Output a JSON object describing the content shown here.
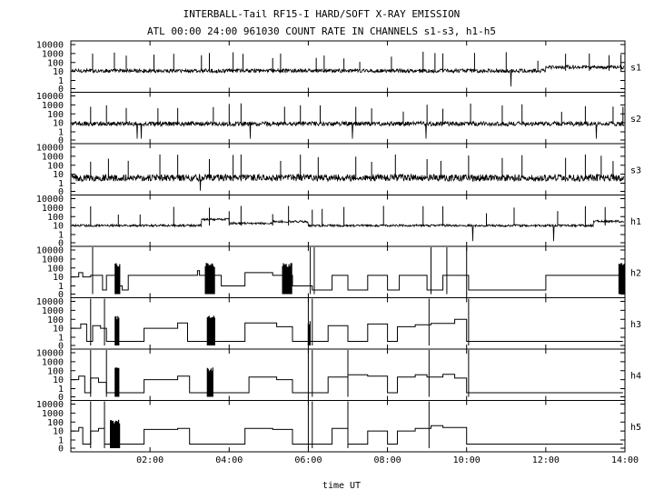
{
  "chart_data": {
    "type": "line",
    "title": "INTERBALL-Tail RF15-I HARD/SOFT X-RAY EMISSION",
    "subtitle": "ATL 00:00 24:00 961030  COUNT RATE IN CHANNELS s1-s3, h1-h5",
    "xlabel": "time UT",
    "x_range_hours": [
      0.0,
      14.0
    ],
    "x_ticks": [
      {
        "hour": 2,
        "label": "02:00"
      },
      {
        "hour": 4,
        "label": "04:00"
      },
      {
        "hour": 6,
        "label": "06:00"
      },
      {
        "hour": 8,
        "label": "08:00"
      },
      {
        "hour": 10,
        "label": "10:00"
      },
      {
        "hour": 12,
        "label": "12:00"
      },
      {
        "hour": 14,
        "label": "14:00"
      }
    ],
    "y_scale": "log",
    "y_range": [
      0,
      10000
    ],
    "y_ticks": [
      {
        "value": 0,
        "label": "0"
      },
      {
        "value": 1,
        "label": "1"
      },
      {
        "value": 10,
        "label": "10"
      },
      {
        "value": 100,
        "label": "100"
      },
      {
        "value": 1000,
        "label": "1000"
      },
      {
        "value": 10000,
        "label": "10000"
      }
    ],
    "color": "#000000",
    "series": [
      {
        "name": "s1",
        "kind": "noisy",
        "base": 12,
        "noise": 0.6,
        "spikes": [
          0.55,
          1.1,
          1.4,
          2.1,
          2.6,
          3.3,
          3.5,
          4.1,
          4.35,
          5.1,
          5.3,
          6.2,
          6.4,
          6.9,
          7.3,
          8.1,
          8.9,
          9.2,
          9.4,
          10.2,
          11.0,
          11.8,
          12.5,
          13.1,
          13.6,
          13.9
        ],
        "segments": [
          {
            "x0": 12.0,
            "x1": 14.0,
            "factor": 2.5
          }
        ]
      },
      {
        "name": "s2",
        "kind": "noisy",
        "base": 8,
        "noise": 0.7,
        "spikes": [
          0.5,
          0.9,
          1.4,
          2.2,
          2.7,
          3.6,
          4.0,
          4.3,
          5.4,
          5.8,
          6.3,
          7.2,
          7.6,
          8.4,
          9.0,
          9.4,
          10.1,
          10.9,
          11.4,
          12.4,
          13.0,
          13.7,
          13.95
        ],
        "segments": []
      },
      {
        "name": "s3",
        "kind": "noisy",
        "base": 4,
        "noise": 1.1,
        "spikes": [
          0.5,
          0.95,
          1.45,
          2.25,
          2.7,
          3.5,
          4.1,
          4.3,
          5.3,
          5.8,
          6.25,
          7.2,
          7.6,
          8.2,
          9.0,
          9.35,
          10.05,
          10.9,
          11.4,
          12.5,
          13.0,
          13.4,
          13.7
        ],
        "segments": []
      },
      {
        "name": "h1",
        "kind": "noisy",
        "base": 10,
        "noise": 0.35,
        "spikes": [
          0.5,
          1.2,
          1.75,
          2.6,
          3.5,
          4.0,
          4.3,
          5.1,
          5.5,
          6.1,
          6.35,
          6.9,
          7.9,
          8.9,
          9.4,
          10.5,
          11.2,
          12.3,
          13.0,
          13.5
        ],
        "segments": [
          {
            "x0": 3.3,
            "x1": 4.0,
            "factor": 5
          },
          {
            "x0": 4.0,
            "x1": 5.1,
            "factor": 1.8
          },
          {
            "x0": 5.1,
            "x1": 6.0,
            "factor": 2.8
          },
          {
            "x0": 13.2,
            "x1": 14.0,
            "factor": 3
          }
        ]
      },
      {
        "name": "h2",
        "kind": "step",
        "steps": [
          [
            0.0,
            10
          ],
          [
            0.2,
            30
          ],
          [
            0.3,
            10
          ],
          [
            0.5,
            15
          ],
          [
            0.8,
            0.5
          ],
          [
            0.9,
            15
          ],
          [
            1.15,
            1
          ],
          [
            1.3,
            0.5
          ],
          [
            1.45,
            15
          ],
          [
            3.2,
            50
          ],
          [
            3.25,
            15
          ],
          [
            3.8,
            1
          ],
          [
            4.4,
            30
          ],
          [
            5.1,
            15
          ],
          [
            5.3,
            15
          ],
          [
            5.6,
            1
          ],
          [
            6.1,
            0.5
          ],
          [
            6.6,
            15
          ],
          [
            7.0,
            0.5
          ],
          [
            7.5,
            15
          ],
          [
            8.0,
            0.5
          ],
          [
            8.3,
            15
          ],
          [
            9.0,
            0.5
          ],
          [
            9.4,
            15
          ],
          [
            10.05,
            0.5
          ],
          [
            12.0,
            15
          ],
          [
            13.95,
            15
          ]
        ],
        "bursts": [
          [
            1.12,
            1.25,
            300
          ],
          [
            3.4,
            3.65,
            300
          ],
          [
            5.35,
            5.6,
            300
          ],
          [
            13.85,
            14.0,
            300
          ]
        ],
        "spikes": [
          0.55,
          6.05,
          6.15,
          9.1,
          9.5,
          10.0
        ]
      },
      {
        "name": "h3",
        "kind": "step",
        "steps": [
          [
            0.0,
            10
          ],
          [
            0.25,
            30
          ],
          [
            0.4,
            0.5
          ],
          [
            0.55,
            20
          ],
          [
            0.75,
            10
          ],
          [
            0.9,
            0.5
          ],
          [
            1.15,
            0.5
          ],
          [
            1.35,
            0.5
          ],
          [
            1.85,
            10
          ],
          [
            2.7,
            40
          ],
          [
            2.95,
            0.5
          ],
          [
            4.4,
            40
          ],
          [
            5.2,
            15
          ],
          [
            5.6,
            0.5
          ],
          [
            6.1,
            0.5
          ],
          [
            6.5,
            20
          ],
          [
            7.0,
            0.5
          ],
          [
            7.5,
            30
          ],
          [
            8.0,
            0.5
          ],
          [
            8.25,
            15
          ],
          [
            8.7,
            25
          ],
          [
            9.1,
            35
          ],
          [
            9.7,
            100
          ],
          [
            10.0,
            0.5
          ],
          [
            12.0,
            0.5
          ],
          [
            13.95,
            0.5
          ]
        ],
        "bursts": [
          [
            1.12,
            1.22,
            200
          ],
          [
            3.45,
            3.65,
            300
          ],
          [
            6.0,
            6.05,
            60
          ]
        ],
        "spikes": [
          0.5,
          0.85,
          6.0,
          6.1,
          9.05,
          10.05
        ]
      },
      {
        "name": "h4",
        "kind": "step",
        "steps": [
          [
            0.0,
            10
          ],
          [
            0.2,
            25
          ],
          [
            0.35,
            0.5
          ],
          [
            0.5,
            15
          ],
          [
            0.7,
            5
          ],
          [
            0.9,
            0.5
          ],
          [
            1.15,
            0.5
          ],
          [
            1.3,
            0.5
          ],
          [
            1.85,
            10
          ],
          [
            2.7,
            25
          ],
          [
            3.0,
            0.5
          ],
          [
            4.5,
            20
          ],
          [
            5.2,
            10
          ],
          [
            5.6,
            0.5
          ],
          [
            6.1,
            0.5
          ],
          [
            6.5,
            20
          ],
          [
            7.0,
            35
          ],
          [
            7.5,
            25
          ],
          [
            8.0,
            0.5
          ],
          [
            8.25,
            20
          ],
          [
            8.7,
            35
          ],
          [
            9.0,
            20
          ],
          [
            9.4,
            40
          ],
          [
            9.7,
            15
          ],
          [
            10.0,
            0.5
          ],
          [
            12.0,
            0.5
          ],
          [
            13.95,
            0.5
          ]
        ],
        "bursts": [
          [
            1.12,
            1.22,
            200
          ],
          [
            3.45,
            3.6,
            200
          ]
        ],
        "spikes": [
          0.5,
          0.9,
          6.0,
          6.1,
          7.0,
          9.05,
          10.05
        ]
      },
      {
        "name": "h5",
        "kind": "step",
        "steps": [
          [
            0.0,
            10
          ],
          [
            0.2,
            25
          ],
          [
            0.3,
            0.5
          ],
          [
            0.5,
            10
          ],
          [
            0.7,
            20
          ],
          [
            0.85,
            0.5
          ],
          [
            1.15,
            0.5
          ],
          [
            1.3,
            0.5
          ],
          [
            1.85,
            15
          ],
          [
            2.7,
            20
          ],
          [
            3.0,
            0.5
          ],
          [
            4.4,
            20
          ],
          [
            5.1,
            15
          ],
          [
            5.6,
            0.5
          ],
          [
            6.1,
            0.5
          ],
          [
            6.6,
            20
          ],
          [
            7.0,
            0.5
          ],
          [
            7.5,
            10
          ],
          [
            8.0,
            0.5
          ],
          [
            8.25,
            10
          ],
          [
            8.7,
            20
          ],
          [
            9.1,
            40
          ],
          [
            9.4,
            25
          ],
          [
            10.0,
            0.5
          ],
          [
            12.0,
            0.5
          ],
          [
            13.95,
            0.5
          ]
        ],
        "bursts": [
          [
            1.0,
            1.25,
            150
          ]
        ],
        "spikes": [
          0.5,
          0.85,
          6.0,
          6.1,
          7.0,
          9.05
        ]
      }
    ]
  }
}
